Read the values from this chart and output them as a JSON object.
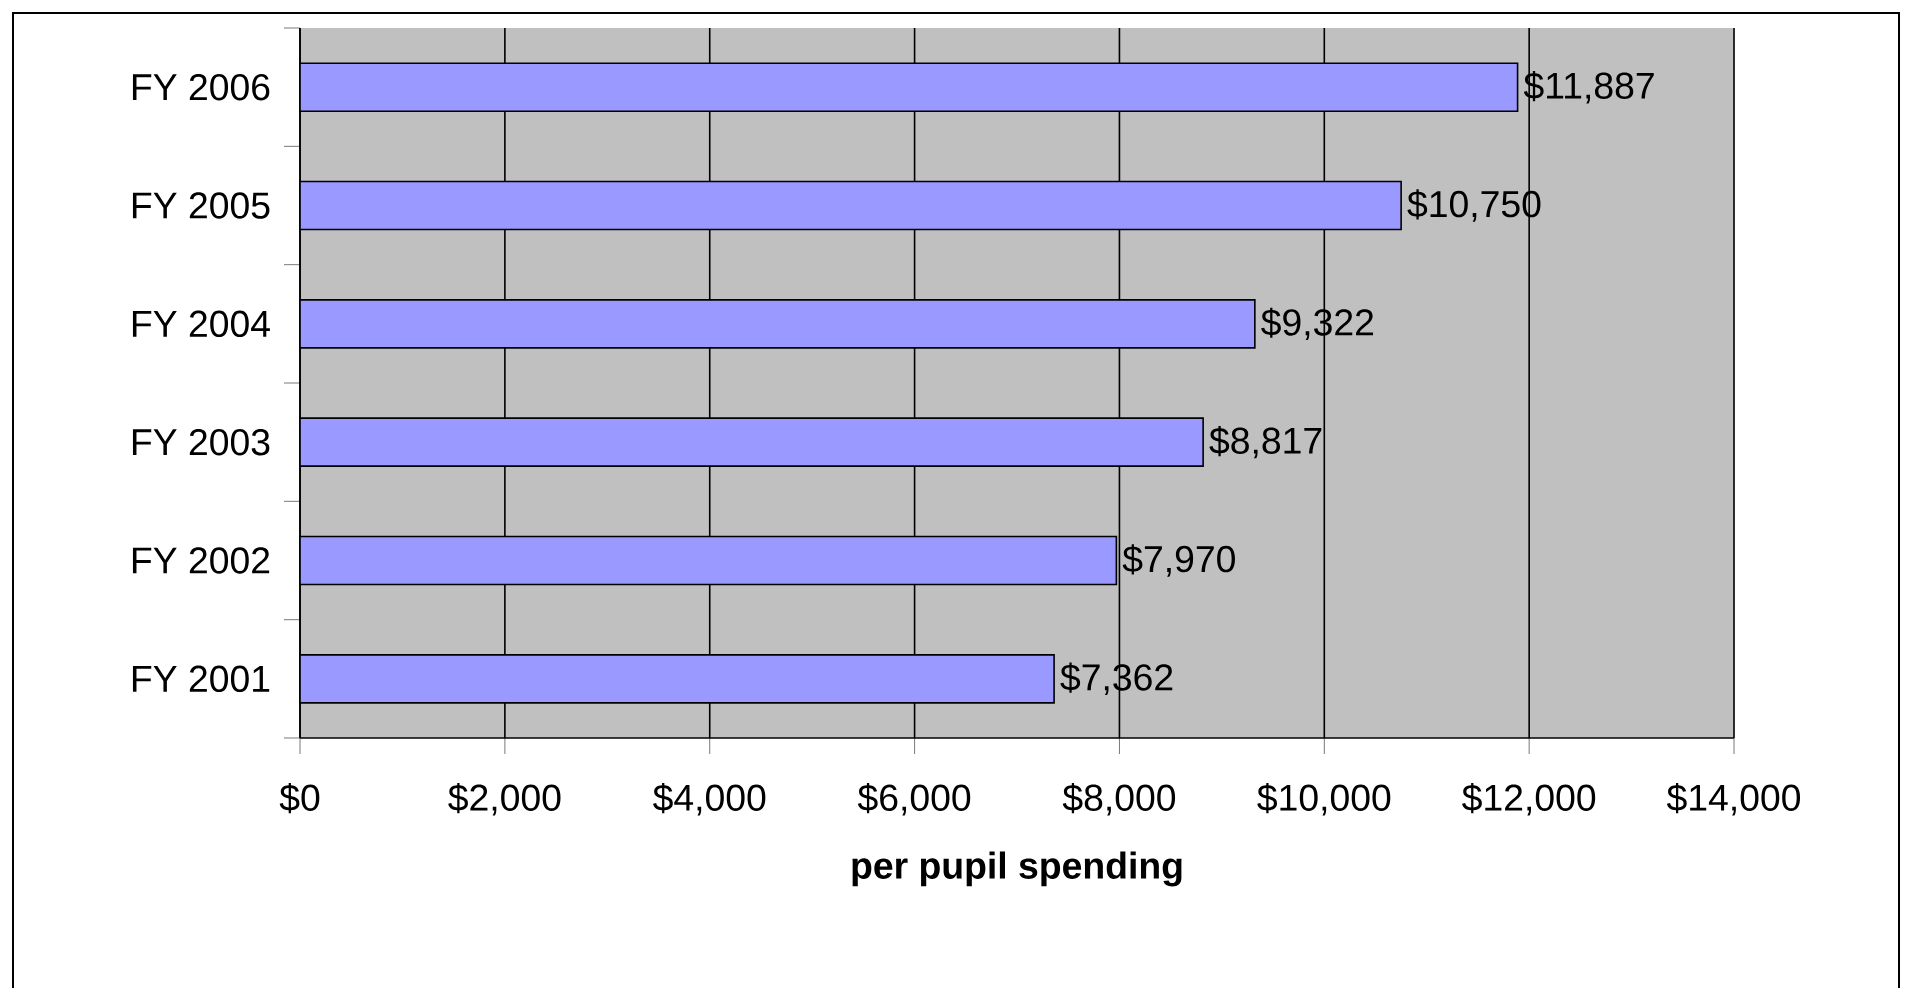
{
  "chart_data": {
    "type": "bar",
    "orientation": "horizontal",
    "xlabel": "per pupil spending",
    "categories": [
      "FY 2006",
      "FY 2005",
      "FY 2004",
      "FY 2003",
      "FY 2002",
      "FY 2001"
    ],
    "values": [
      11887,
      10750,
      9322,
      8817,
      7970,
      7362
    ],
    "value_labels": [
      "$11,887",
      "$10,750",
      "$9,322",
      "$8,817",
      "$7,970",
      "$7,362"
    ],
    "color": "#9999ff",
    "xlim": [
      0,
      14000
    ],
    "xticks": [
      {
        "value": 0,
        "label": "$0"
      },
      {
        "value": 2000,
        "label": "$2,000"
      },
      {
        "value": 4000,
        "label": "$4,000"
      },
      {
        "value": 6000,
        "label": "$6,000"
      },
      {
        "value": 8000,
        "label": "$8,000"
      },
      {
        "value": 10000,
        "label": "$10,000"
      },
      {
        "value": 12000,
        "label": "$12,000"
      },
      {
        "value": 14000,
        "label": "$14,000"
      }
    ],
    "grid": "x"
  }
}
